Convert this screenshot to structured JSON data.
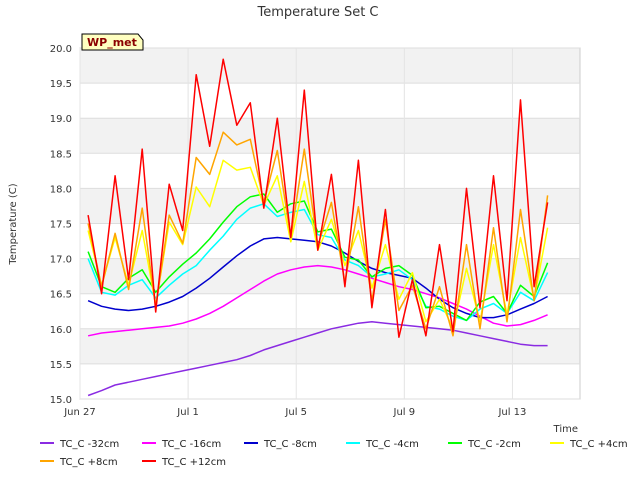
{
  "chart_data": {
    "type": "line",
    "title": "Temperature Set C",
    "xlabel": "Time",
    "ylabel": "Temperature (C)",
    "badge": "WP_met",
    "xlim": [
      0,
      18.5
    ],
    "ylim": [
      15.0,
      20.0
    ],
    "x_ticks": [
      {
        "v": 0,
        "label": "Jun 27"
      },
      {
        "v": 4,
        "label": "Jul 1"
      },
      {
        "v": 8,
        "label": "Jul 5"
      },
      {
        "v": 12,
        "label": "Jul 9"
      },
      {
        "v": 16,
        "label": "Jul 13"
      }
    ],
    "y_ticks": [
      15.0,
      15.5,
      16.0,
      16.5,
      17.0,
      17.5,
      18.0,
      18.5,
      19.0,
      19.5,
      20.0
    ],
    "y_tick_labels": [
      "15.0",
      "15.5",
      "16.0",
      "16.5",
      "17.0",
      "17.5",
      "18.0",
      "18.5",
      "19.0",
      "19.5",
      "20.0"
    ],
    "grid": true,
    "legend_position": "bottom",
    "x": [
      0.3,
      0.8,
      1.3,
      1.8,
      2.3,
      2.8,
      3.3,
      3.8,
      4.3,
      4.8,
      5.3,
      5.8,
      6.3,
      6.8,
      7.3,
      7.8,
      8.3,
      8.8,
      9.3,
      9.8,
      10.3,
      10.8,
      11.3,
      11.8,
      12.3,
      12.8,
      13.3,
      13.8,
      14.3,
      14.8,
      15.3,
      15.8,
      16.3,
      16.8,
      17.3
    ],
    "series": [
      {
        "name": "TC_C -32cm",
        "color": "#8a2be2",
        "values": [
          15.05,
          15.12,
          15.2,
          15.24,
          15.28,
          15.32,
          15.36,
          15.4,
          15.44,
          15.48,
          15.52,
          15.56,
          15.62,
          15.7,
          15.76,
          15.82,
          15.88,
          15.94,
          16.0,
          16.04,
          16.08,
          16.1,
          16.08,
          16.06,
          16.04,
          16.02,
          16.0,
          15.98,
          15.94,
          15.9,
          15.86,
          15.82,
          15.78,
          15.76,
          15.76
        ]
      },
      {
        "name": "TC_C -16cm",
        "color": "#ff00ff",
        "values": [
          15.9,
          15.94,
          15.96,
          15.98,
          16.0,
          16.02,
          16.04,
          16.08,
          16.14,
          16.22,
          16.32,
          16.44,
          16.56,
          16.68,
          16.78,
          16.84,
          16.88,
          16.9,
          16.88,
          16.84,
          16.78,
          16.72,
          16.66,
          16.6,
          16.56,
          16.5,
          16.44,
          16.36,
          16.28,
          16.18,
          16.08,
          16.04,
          16.06,
          16.12,
          16.2
        ]
      },
      {
        "name": "TC_C -8cm",
        "color": "#0000cd",
        "values": [
          16.4,
          16.32,
          16.28,
          16.26,
          16.28,
          16.32,
          16.38,
          16.46,
          16.58,
          16.72,
          16.88,
          17.04,
          17.18,
          17.28,
          17.3,
          17.28,
          17.26,
          17.24,
          17.18,
          17.08,
          16.96,
          16.86,
          16.8,
          16.76,
          16.72,
          16.58,
          16.42,
          16.3,
          16.22,
          16.16,
          16.16,
          16.2,
          16.28,
          16.36,
          16.46
        ]
      },
      {
        "name": "TC_C -4cm",
        "color": "#00ffff",
        "values": [
          17.0,
          16.52,
          16.48,
          16.62,
          16.7,
          16.44,
          16.62,
          16.78,
          16.9,
          17.12,
          17.32,
          17.56,
          17.72,
          17.78,
          17.6,
          17.66,
          17.7,
          17.34,
          17.3,
          16.98,
          16.9,
          16.74,
          16.78,
          16.84,
          16.7,
          16.32,
          16.28,
          16.18,
          16.12,
          16.28,
          16.36,
          16.22,
          16.52,
          16.4,
          16.8
        ]
      },
      {
        "name": "TC_C -2cm",
        "color": "#00ff00",
        "values": [
          17.1,
          16.6,
          16.52,
          16.72,
          16.84,
          16.52,
          16.74,
          16.92,
          17.08,
          17.28,
          17.52,
          17.74,
          17.88,
          17.92,
          17.66,
          17.78,
          17.82,
          17.38,
          17.42,
          17.02,
          16.98,
          16.74,
          16.86,
          16.9,
          16.76,
          16.3,
          16.32,
          16.22,
          16.12,
          16.38,
          16.46,
          16.22,
          16.62,
          16.46,
          16.94
        ]
      },
      {
        "name": "TC_C +4cm",
        "color": "#ffff00",
        "values": [
          17.4,
          16.62,
          17.3,
          16.62,
          17.4,
          16.34,
          17.52,
          17.2,
          18.02,
          17.74,
          18.4,
          18.26,
          18.3,
          17.76,
          18.18,
          17.24,
          18.1,
          17.12,
          17.56,
          16.9,
          17.4,
          16.58,
          17.2,
          16.42,
          16.8,
          16.1,
          16.42,
          16.0,
          16.86,
          16.1,
          17.2,
          16.2,
          17.3,
          16.42,
          17.44
        ]
      },
      {
        "name": "TC_C +8cm",
        "color": "#ffa500",
        "values": [
          17.5,
          16.6,
          17.36,
          16.56,
          17.72,
          16.3,
          17.62,
          17.22,
          18.44,
          18.2,
          18.8,
          18.62,
          18.7,
          17.8,
          18.54,
          17.3,
          18.56,
          17.18,
          17.8,
          16.66,
          17.74,
          16.4,
          17.56,
          16.26,
          16.62,
          16.0,
          16.6,
          15.9,
          17.2,
          16.0,
          17.44,
          16.1,
          17.7,
          16.4,
          17.9
        ]
      },
      {
        "name": "TC_C +12cm",
        "color": "#ff0000",
        "values": [
          17.62,
          16.5,
          18.18,
          16.7,
          18.56,
          16.24,
          18.06,
          17.4,
          19.62,
          18.6,
          19.84,
          18.9,
          19.22,
          17.72,
          19.0,
          17.3,
          19.4,
          17.12,
          18.2,
          16.6,
          18.4,
          16.3,
          17.7,
          15.88,
          16.7,
          15.9,
          17.2,
          15.96,
          18.0,
          16.3,
          18.18,
          16.4,
          19.26,
          16.6,
          17.8
        ]
      }
    ]
  }
}
